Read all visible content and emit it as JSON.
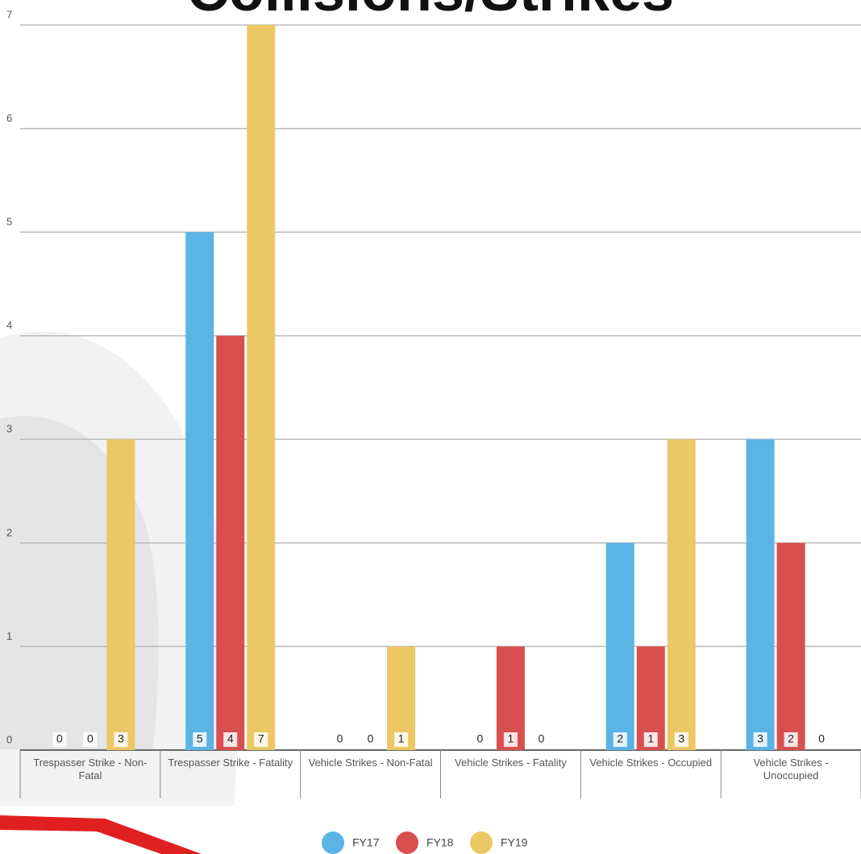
{
  "chart_data": {
    "type": "bar",
    "title": "Collisions/Strikes",
    "categories": [
      "Trespasser Strike - Non-Fatal",
      "Trespasser Strike - Fatality",
      "Vehicle Strikes - Non-Fatal",
      "Vehicle Strikes - Fatality",
      "Vehicle Strikes - Occupied",
      "Vehicle Strikes - Unoccupied"
    ],
    "series": [
      {
        "name": "FY17",
        "color": "#5ab4e5",
        "values": [
          0,
          5,
          0,
          0,
          2,
          3
        ]
      },
      {
        "name": "FY18",
        "color": "#d94f4f",
        "values": [
          0,
          4,
          0,
          1,
          1,
          2
        ]
      },
      {
        "name": "FY19",
        "color": "#ecc865",
        "values": [
          3,
          7,
          1,
          0,
          3,
          0
        ]
      }
    ],
    "ylim": [
      0,
      7
    ],
    "yticks": [
      0,
      1,
      2,
      3,
      4,
      5,
      6,
      7
    ],
    "grid": true,
    "legend": "bottom"
  }
}
